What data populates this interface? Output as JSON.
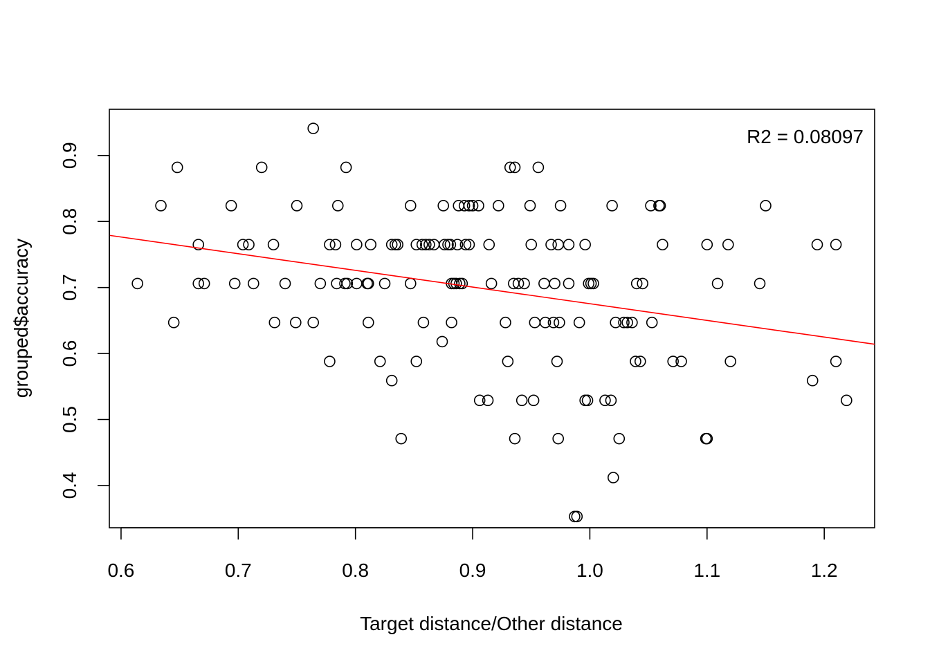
{
  "chart_data": {
    "type": "scatter",
    "title": "",
    "xlabel": "Target distance/Other distance",
    "ylabel": "grouped$accuracy",
    "xlim": [
      0.59,
      1.243
    ],
    "ylim": [
      0.336,
      0.97
    ],
    "xticks": [
      "0.6",
      "0.7",
      "0.8",
      "0.9",
      "1.0",
      "1.1",
      "1.2"
    ],
    "yticks": [
      "0.4",
      "0.5",
      "0.6",
      "0.7",
      "0.8",
      "0.9"
    ],
    "grid": false,
    "annotation": "R2 = 0.08097",
    "colors": {
      "points": "#000000",
      "fit_line": "#ff0000"
    },
    "fit_line": {
      "x": [
        0.59,
        1.243
      ],
      "y": [
        0.779,
        0.614
      ]
    },
    "points": [
      [
        0.614,
        0.706
      ],
      [
        0.634,
        0.824
      ],
      [
        0.645,
        0.647
      ],
      [
        0.648,
        0.882
      ],
      [
        0.666,
        0.765
      ],
      [
        0.666,
        0.706
      ],
      [
        0.671,
        0.706
      ],
      [
        0.694,
        0.824
      ],
      [
        0.697,
        0.706
      ],
      [
        0.704,
        0.765
      ],
      [
        0.709,
        0.765
      ],
      [
        0.713,
        0.706
      ],
      [
        0.72,
        0.882
      ],
      [
        0.73,
        0.765
      ],
      [
        0.731,
        0.647
      ],
      [
        0.74,
        0.706
      ],
      [
        0.749,
        0.647
      ],
      [
        0.75,
        0.824
      ],
      [
        0.764,
        0.941
      ],
      [
        0.764,
        0.647
      ],
      [
        0.77,
        0.706
      ],
      [
        0.778,
        0.765
      ],
      [
        0.778,
        0.588
      ],
      [
        0.783,
        0.765
      ],
      [
        0.784,
        0.706
      ],
      [
        0.785,
        0.824
      ],
      [
        0.791,
        0.706
      ],
      [
        0.792,
        0.882
      ],
      [
        0.793,
        0.706
      ],
      [
        0.801,
        0.765
      ],
      [
        0.801,
        0.706
      ],
      [
        0.81,
        0.706
      ],
      [
        0.811,
        0.706
      ],
      [
        0.811,
        0.647
      ],
      [
        0.813,
        0.765
      ],
      [
        0.821,
        0.588
      ],
      [
        0.825,
        0.706
      ],
      [
        0.831,
        0.765
      ],
      [
        0.831,
        0.559
      ],
      [
        0.834,
        0.765
      ],
      [
        0.836,
        0.765
      ],
      [
        0.839,
        0.471
      ],
      [
        0.847,
        0.824
      ],
      [
        0.847,
        0.706
      ],
      [
        0.852,
        0.765
      ],
      [
        0.852,
        0.588
      ],
      [
        0.857,
        0.765
      ],
      [
        0.858,
        0.647
      ],
      [
        0.86,
        0.765
      ],
      [
        0.863,
        0.765
      ],
      [
        0.867,
        0.765
      ],
      [
        0.874,
        0.618
      ],
      [
        0.875,
        0.824
      ],
      [
        0.876,
        0.765
      ],
      [
        0.879,
        0.765
      ],
      [
        0.881,
        0.765
      ],
      [
        0.882,
        0.706
      ],
      [
        0.882,
        0.647
      ],
      [
        0.884,
        0.706
      ],
      [
        0.886,
        0.706
      ],
      [
        0.887,
        0.765
      ],
      [
        0.888,
        0.824
      ],
      [
        0.889,
        0.706
      ],
      [
        0.891,
        0.706
      ],
      [
        0.893,
        0.824
      ],
      [
        0.894,
        0.765
      ],
      [
        0.897,
        0.765
      ],
      [
        0.897,
        0.824
      ],
      [
        0.9,
        0.824
      ],
      [
        0.905,
        0.824
      ],
      [
        0.906,
        0.529
      ],
      [
        0.913,
        0.529
      ],
      [
        0.914,
        0.765
      ],
      [
        0.916,
        0.706
      ],
      [
        0.922,
        0.824
      ],
      [
        0.928,
        0.647
      ],
      [
        0.93,
        0.588
      ],
      [
        0.932,
        0.882
      ],
      [
        0.935,
        0.706
      ],
      [
        0.936,
        0.882
      ],
      [
        0.936,
        0.471
      ],
      [
        0.939,
        0.706
      ],
      [
        0.942,
        0.529
      ],
      [
        0.944,
        0.706
      ],
      [
        0.949,
        0.824
      ],
      [
        0.95,
        0.765
      ],
      [
        0.952,
        0.529
      ],
      [
        0.953,
        0.647
      ],
      [
        0.956,
        0.882
      ],
      [
        0.961,
        0.706
      ],
      [
        0.962,
        0.647
      ],
      [
        0.967,
        0.765
      ],
      [
        0.969,
        0.647
      ],
      [
        0.97,
        0.706
      ],
      [
        0.972,
        0.588
      ],
      [
        0.973,
        0.765
      ],
      [
        0.973,
        0.471
      ],
      [
        0.974,
        0.647
      ],
      [
        0.975,
        0.824
      ],
      [
        0.982,
        0.765
      ],
      [
        0.982,
        0.706
      ],
      [
        0.987,
        0.353
      ],
      [
        0.989,
        0.353
      ],
      [
        0.991,
        0.647
      ],
      [
        0.996,
        0.765
      ],
      [
        0.996,
        0.529
      ],
      [
        0.998,
        0.529
      ],
      [
        0.999,
        0.706
      ],
      [
        1.001,
        0.706
      ],
      [
        1.003,
        0.706
      ],
      [
        1.013,
        0.529
      ],
      [
        1.018,
        0.529
      ],
      [
        1.019,
        0.824
      ],
      [
        1.02,
        0.412
      ],
      [
        1.022,
        0.647
      ],
      [
        1.025,
        0.471
      ],
      [
        1.029,
        0.647
      ],
      [
        1.032,
        0.647
      ],
      [
        1.036,
        0.647
      ],
      [
        1.039,
        0.588
      ],
      [
        1.04,
        0.706
      ],
      [
        1.043,
        0.588
      ],
      [
        1.045,
        0.706
      ],
      [
        1.052,
        0.824
      ],
      [
        1.053,
        0.647
      ],
      [
        1.059,
        0.824
      ],
      [
        1.06,
        0.824
      ],
      [
        1.062,
        0.765
      ],
      [
        1.071,
        0.588
      ],
      [
        1.078,
        0.588
      ],
      [
        1.099,
        0.471
      ],
      [
        1.1,
        0.471
      ],
      [
        1.1,
        0.765
      ],
      [
        1.109,
        0.706
      ],
      [
        1.118,
        0.765
      ],
      [
        1.12,
        0.588
      ],
      [
        1.145,
        0.706
      ],
      [
        1.15,
        0.824
      ],
      [
        1.19,
        0.559
      ],
      [
        1.194,
        0.765
      ],
      [
        1.21,
        0.765
      ],
      [
        1.21,
        0.588
      ],
      [
        1.219,
        0.529
      ]
    ]
  }
}
